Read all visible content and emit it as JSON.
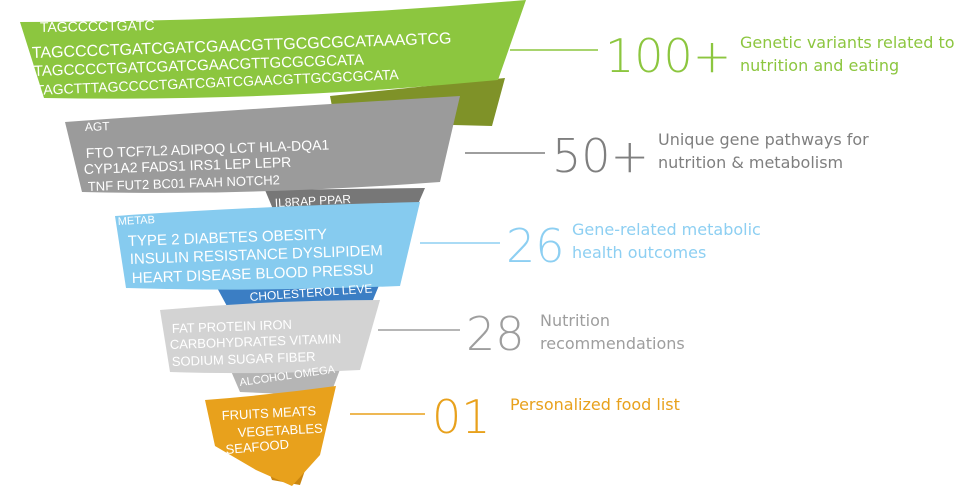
{
  "tiers": [
    {
      "number": "100+",
      "description": [
        "Genetic variants related to",
        "nutrition and eating"
      ],
      "color": "#8cc63f",
      "back_color": "#7f9228",
      "text_color": "#8cc63f",
      "ribbon_text": [
        "TAGCCCCTGATC",
        "TAGCCCCTGATCGATCGAACGTTGCGCGCATAAAGTCG",
        "TAGCCCCTGATCGATCGAACGTTGCGCGCATA",
        "TAGCTTTAGCCCCTGATCGATCGAACGTTGCGCGCATA"
      ]
    },
    {
      "number": "50+",
      "description": [
        "Unique gene pathways for",
        "nutrition & metabolism"
      ],
      "color": "#9b9b9b",
      "back_color": "#777777",
      "text_color": "#7f7f7f",
      "ribbon_text": [
        "AGT",
        "FTO  TCF7L2  ADIPOQ  LCT  HLA-DQA1",
        "CYP1A2  FADS1  IRS1  LEP  LEPR",
        "TNF  FUT2  BC01  FAAH  NOTCH2",
        "IL8RAP  PPAR"
      ]
    },
    {
      "number": "26",
      "description": [
        "Gene-related metabolic",
        "health outcomes"
      ],
      "color": "#86cbef",
      "back_color": "#3b7ec4",
      "text_color": "#8dcff2",
      "ribbon_text": [
        "METAB",
        "TYPE 2 DIABETES   OBESITY",
        "INSULIN RESISTANCE  DYSLIPIDEM",
        "HEART DISEASE  BLOOD PRESSU",
        "CHOLESTEROL LEVE"
      ]
    },
    {
      "number": "28",
      "description": [
        "Nutrition",
        "recommendations"
      ],
      "color": "#d3d3d3",
      "back_color": "#b5b5b5",
      "text_color": "#9e9e9e",
      "ribbon_text": [
        "FAT   PROTEIN   IRON",
        "CARBOHYDRATES  VITAMIN",
        "SODIUM   SUGAR   FIBER",
        "ALCOHOL  OMEGA"
      ]
    },
    {
      "number": "01",
      "description": [
        "Personalized food list"
      ],
      "color": "#e8a11c",
      "back_color": "#c98510",
      "text_color": "#e8a11c",
      "ribbon_text": [
        "FRUITS MEATS",
        "VEGETABLES",
        "SEAFOOD"
      ]
    }
  ]
}
